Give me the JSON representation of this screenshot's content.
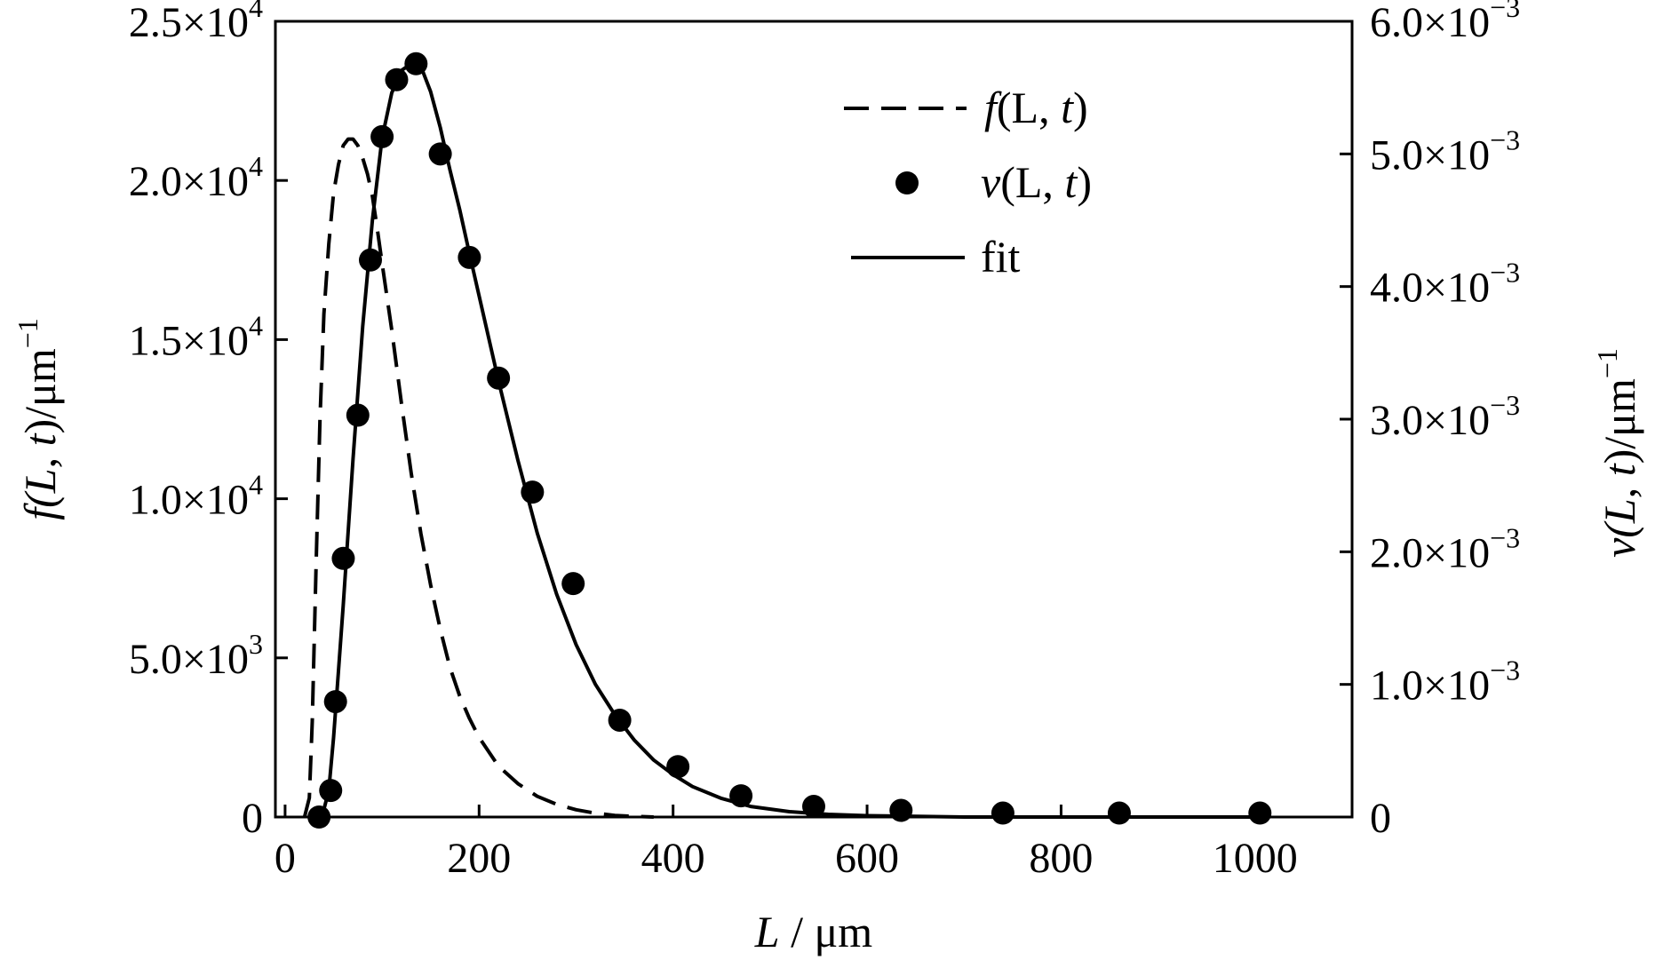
{
  "chart_data": {
    "type": "line",
    "xlabel": {
      "var": "L",
      "sep": " / ",
      "unit": "μm"
    },
    "ylabel_left": {
      "prefix": "f(",
      "v1": "L",
      "comma": ", ",
      "v2": "t",
      "suffix": ")/μm",
      "exp": "−1"
    },
    "ylabel_right": {
      "prefix": "v(",
      "v1": "L",
      "comma": ", ",
      "v2": "t",
      "suffix": ")/μm",
      "exp": "−1"
    },
    "xlim": [
      -10,
      1100
    ],
    "ylim_left": [
      0,
      25000
    ],
    "ylim_right": [
      0,
      0.006
    ],
    "x_ticks": [
      {
        "value": 0,
        "label": "0"
      },
      {
        "value": 200,
        "label": "200"
      },
      {
        "value": 400,
        "label": "400"
      },
      {
        "value": 600,
        "label": "600"
      },
      {
        "value": 800,
        "label": "800"
      },
      {
        "value": 1000,
        "label": "1000"
      }
    ],
    "y_left_ticks": [
      {
        "value": 0,
        "mantissa": "0",
        "exp": ""
      },
      {
        "value": 5000,
        "mantissa": "5.0×10",
        "exp": "3"
      },
      {
        "value": 10000,
        "mantissa": "1.0×10",
        "exp": "4"
      },
      {
        "value": 15000,
        "mantissa": "1.5×10",
        "exp": "4"
      },
      {
        "value": 20000,
        "mantissa": "2.0×10",
        "exp": "4"
      },
      {
        "value": 25000,
        "mantissa": "2.5×10",
        "exp": "4"
      }
    ],
    "y_right_ticks": [
      {
        "value": 0,
        "mantissa": "0",
        "exp": ""
      },
      {
        "value": 0.001,
        "mantissa": "1.0×10",
        "exp": "−3"
      },
      {
        "value": 0.002,
        "mantissa": "2.0×10",
        "exp": "−3"
      },
      {
        "value": 0.003,
        "mantissa": "3.0×10",
        "exp": "−3"
      },
      {
        "value": 0.004,
        "mantissa": "4.0×10",
        "exp": "−3"
      },
      {
        "value": 0.005,
        "mantissa": "5.0×10",
        "exp": "−3"
      },
      {
        "value": 0.006,
        "mantissa": "6.0×10",
        "exp": "−3"
      }
    ],
    "legend_position": "top-right",
    "legend": [
      {
        "id": "f",
        "prefix": "f",
        "mid": "(L, ",
        "italic": "t",
        "suffix": ")",
        "style": "dashed"
      },
      {
        "id": "v",
        "prefix": "v",
        "mid": "(L, ",
        "italic": "t",
        "suffix": ")",
        "style": "marker"
      },
      {
        "id": "fit",
        "prefix": "",
        "mid": "fit",
        "italic": "",
        "suffix": "",
        "style": "solid"
      }
    ],
    "series": [
      {
        "id": "f",
        "axis": "left",
        "style": "dashed",
        "x": [
          20,
          25,
          28,
          32,
          36,
          40,
          45,
          50,
          55,
          60,
          65,
          70,
          75,
          80,
          85,
          90,
          95,
          100,
          110,
          120,
          130,
          140,
          150,
          160,
          170,
          180,
          190,
          200,
          220,
          240,
          260,
          280,
          300,
          320,
          340,
          360,
          380
        ],
        "y": [
          0,
          600,
          3000,
          8000,
          12500,
          15800,
          18000,
          19600,
          20500,
          21100,
          21300,
          21300,
          21100,
          20700,
          20200,
          19500,
          18500,
          17400,
          15300,
          13000,
          10800,
          8900,
          7300,
          5900,
          4700,
          3800,
          3100,
          2500,
          1600,
          1050,
          650,
          400,
          230,
          120,
          50,
          20,
          0
        ]
      },
      {
        "id": "v",
        "axis": "right",
        "style": "marker",
        "x": [
          35,
          47,
          52,
          60,
          75,
          88,
          100,
          115,
          135,
          160,
          190,
          220,
          255,
          297,
          345,
          405,
          470,
          545,
          635,
          740,
          860,
          1005
        ],
        "y": [
          0.0,
          0.0002,
          0.00087,
          0.00195,
          0.00303,
          0.0042,
          0.00513,
          0.00556,
          0.00568,
          0.005,
          0.00422,
          0.00331,
          0.00245,
          0.00176,
          0.00073,
          0.00038,
          0.00016,
          8e-05,
          5e-05,
          3e-05,
          3e-05,
          3e-05
        ]
      },
      {
        "id": "fit",
        "axis": "right",
        "style": "solid",
        "x": [
          38,
          45,
          50,
          55,
          60,
          70,
          80,
          90,
          100,
          110,
          120,
          130,
          140,
          150,
          160,
          170,
          180,
          190,
          200,
          220,
          240,
          260,
          280,
          300,
          320,
          340,
          360,
          380,
          400,
          420,
          450,
          480,
          520,
          560,
          600,
          700,
          800,
          900,
          1000
        ],
        "y": [
          0,
          0.0002,
          0.0006,
          0.0011,
          0.0016,
          0.0027,
          0.0037,
          0.0045,
          0.00512,
          0.00546,
          0.00563,
          0.00568,
          0.00566,
          0.00547,
          0.0052,
          0.00488,
          0.00458,
          0.00425,
          0.00393,
          0.00329,
          0.00269,
          0.00214,
          0.00168,
          0.0013,
          0.001,
          0.00077,
          0.00058,
          0.00043,
          0.00032,
          0.00023,
          0.00014,
          8e-05,
          4e-05,
          2e-05,
          1e-05,
          0,
          0,
          0,
          0
        ]
      }
    ]
  }
}
